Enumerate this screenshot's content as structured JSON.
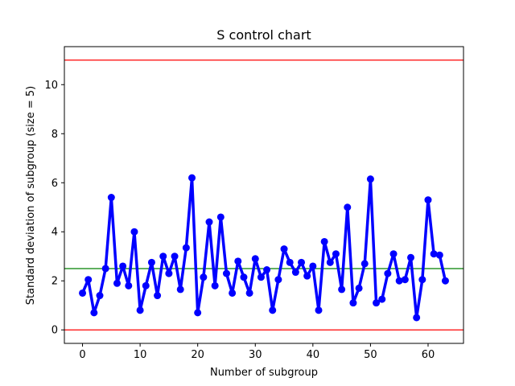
{
  "chart_data": {
    "type": "line",
    "title": "S control chart",
    "xlabel": "Number of subgroup",
    "ylabel": "Standard deviation of subgroup (size = 5)",
    "xlim": [
      -3.15,
      66.15
    ],
    "ylim": [
      -0.55,
      11.55
    ],
    "xticks": [
      0,
      10,
      20,
      30,
      40,
      50,
      60
    ],
    "yticks": [
      0,
      2,
      4,
      6,
      8,
      10
    ],
    "grid": false,
    "control_limits": {
      "ucl": 11.0,
      "center": 2.5,
      "lcl": 0.0
    },
    "colors": {
      "series": "#0000ff",
      "limits": "#ff0000",
      "center": "#008000"
    },
    "x": [
      0,
      1,
      2,
      3,
      4,
      5,
      6,
      7,
      8,
      9,
      10,
      11,
      12,
      13,
      14,
      15,
      16,
      17,
      18,
      19,
      20,
      21,
      22,
      23,
      24,
      25,
      26,
      27,
      28,
      29,
      30,
      31,
      32,
      33,
      34,
      35,
      36,
      37,
      38,
      39,
      40,
      41,
      42,
      43,
      44,
      45,
      46,
      47,
      48,
      49,
      50,
      51,
      52,
      53,
      54,
      55,
      56,
      57,
      58,
      59,
      60,
      61,
      62,
      63
    ],
    "series": [
      {
        "name": "S",
        "values": [
          1.5,
          2.05,
          0.7,
          1.4,
          2.5,
          5.4,
          1.9,
          2.6,
          1.8,
          4.0,
          0.8,
          1.8,
          2.75,
          1.4,
          3.0,
          2.3,
          3.0,
          1.65,
          3.35,
          6.2,
          0.7,
          2.15,
          4.4,
          1.8,
          4.6,
          2.3,
          1.5,
          2.8,
          2.15,
          1.5,
          2.9,
          2.15,
          2.45,
          0.8,
          2.05,
          3.3,
          2.75,
          2.35,
          2.75,
          2.2,
          2.6,
          0.8,
          3.6,
          2.75,
          3.1,
          1.65,
          5.0,
          1.1,
          1.7,
          2.7,
          6.15,
          1.1,
          1.25,
          2.3,
          3.1,
          2.0,
          2.05,
          2.95,
          0.5,
          2.05,
          5.3,
          3.1,
          3.05,
          2.0
        ]
      }
    ]
  }
}
